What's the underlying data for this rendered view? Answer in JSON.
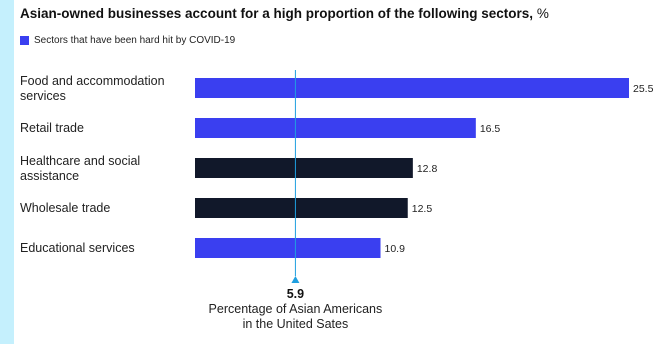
{
  "colors": {
    "highlight": "#3a3ff0",
    "other": "#11182a",
    "reference": "#1f9fe0",
    "background": "#c5f0fd"
  },
  "chart_data": {
    "type": "bar",
    "orientation": "horizontal",
    "title": "Asian-owned businesses account for a high proportion of the following sectors,",
    "title_unit": "%",
    "legend": [
      {
        "label": "Sectors that have been hard hit by COVID-19",
        "color": "#3a3ff0"
      }
    ],
    "legend_position": "top-left",
    "categories": [
      [
        "Food and accommodation",
        "services"
      ],
      [
        "Retail trade"
      ],
      [
        "Healthcare and social",
        "assistance"
      ],
      [
        "Wholesale trade"
      ],
      [
        "Educational services"
      ]
    ],
    "values": [
      25.5,
      16.5,
      12.8,
      12.5,
      10.9
    ],
    "value_labels": [
      "25.5",
      "16.5",
      "12.8",
      "12.5",
      "10.9"
    ],
    "hard_hit": [
      true,
      true,
      false,
      false,
      true
    ],
    "xlim": [
      0,
      25.5
    ],
    "grid": false,
    "reference_line": {
      "value": 5.9,
      "value_label": "5.9",
      "caption": [
        "Percentage of Asian Americans",
        "in the United Sates"
      ]
    }
  }
}
